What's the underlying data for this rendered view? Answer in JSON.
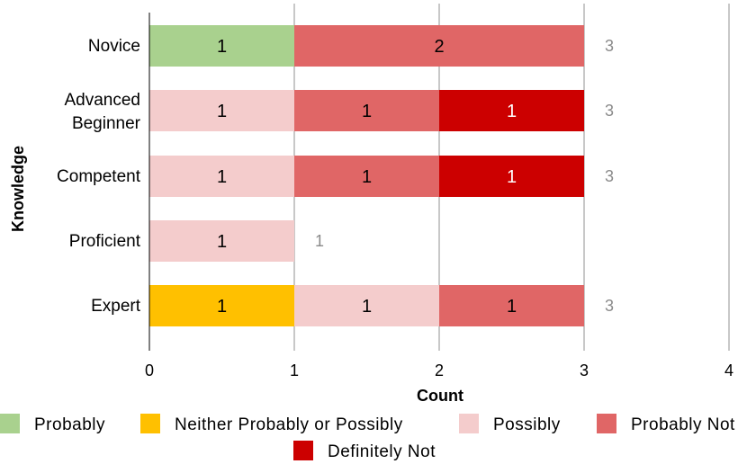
{
  "chart_data": {
    "type": "bar",
    "orientation": "horizontal",
    "stacked": true,
    "categories": [
      "Novice",
      "Advanced Beginner",
      "Competent",
      "Proficient",
      "Expert"
    ],
    "series": [
      {
        "name": "Probably",
        "color": "#a9d18e",
        "values": [
          1,
          0,
          0,
          0,
          0
        ]
      },
      {
        "name": "Neither Probably or Possibly",
        "color": "#ffc000",
        "values": [
          0,
          0,
          0,
          0,
          1
        ]
      },
      {
        "name": "Possibly",
        "color": "#f4cccc",
        "values": [
          0,
          1,
          1,
          1,
          1
        ]
      },
      {
        "name": "Probably Not",
        "color": "#e06666",
        "values": [
          2,
          1,
          1,
          0,
          1
        ]
      },
      {
        "name": "Definitely Not",
        "color": "#cc0000",
        "values": [
          0,
          1,
          1,
          0,
          0
        ]
      }
    ],
    "totals": [
      3,
      3,
      3,
      1,
      3
    ],
    "xlabel": "Count",
    "ylabel": "Knowledge",
    "xlim": [
      0,
      4
    ],
    "xticks": [
      "0",
      "1",
      "2",
      "3",
      "4"
    ],
    "grid": "vertical",
    "legend": "bottom"
  }
}
